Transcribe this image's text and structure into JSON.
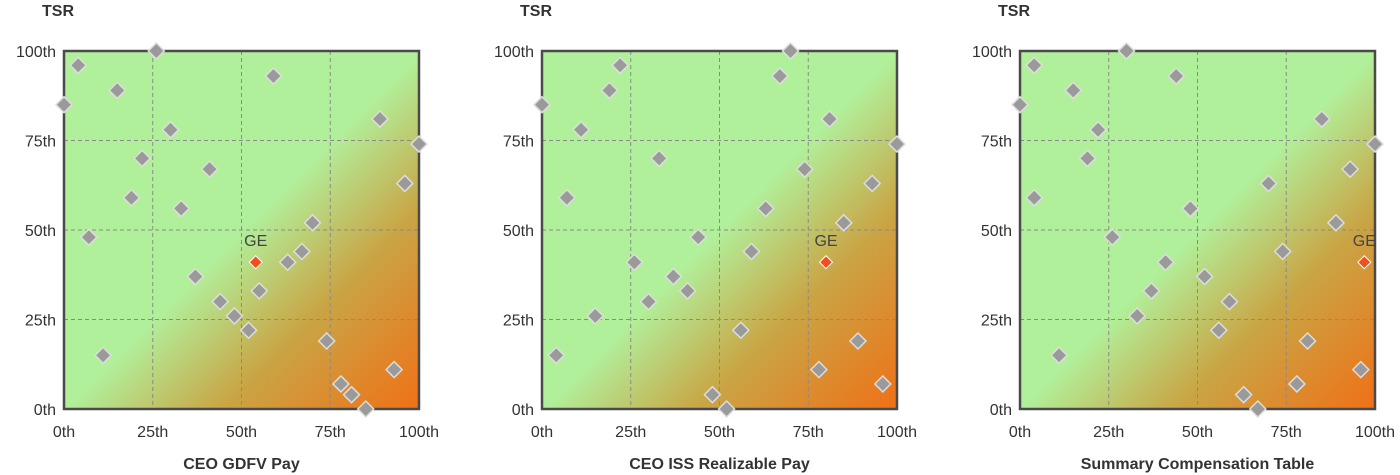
{
  "chart_data": [
    {
      "type": "scatter",
      "ylabel": "TSR",
      "xlabel": "CEO GDFV Pay",
      "x_ticks": [
        "0th",
        "25th",
        "50th",
        "75th",
        "100th"
      ],
      "y_ticks": [
        "0th",
        "25th",
        "50th",
        "75th",
        "100th"
      ],
      "xlim": [
        0,
        100
      ],
      "ylim": [
        0,
        100
      ],
      "grid": true,
      "points": [
        [
          0,
          85
        ],
        [
          4,
          96
        ],
        [
          7,
          48
        ],
        [
          11,
          15
        ],
        [
          15,
          89
        ],
        [
          19,
          59
        ],
        [
          22,
          70
        ],
        [
          26,
          100
        ],
        [
          30,
          78
        ],
        [
          33,
          56
        ],
        [
          37,
          37
        ],
        [
          41,
          67
        ],
        [
          44,
          30
        ],
        [
          48,
          26
        ],
        [
          52,
          22
        ],
        [
          55,
          33
        ],
        [
          59,
          93
        ],
        [
          63,
          41
        ],
        [
          67,
          44
        ],
        [
          70,
          52
        ],
        [
          74,
          19
        ],
        [
          78,
          7
        ],
        [
          81,
          4
        ],
        [
          85,
          0
        ],
        [
          89,
          81
        ],
        [
          93,
          11
        ],
        [
          96,
          63
        ],
        [
          100,
          74
        ]
      ],
      "highlight": {
        "label": "GE",
        "x": 54,
        "y": 41
      }
    },
    {
      "type": "scatter",
      "ylabel": "TSR",
      "xlabel": "CEO ISS Realizable Pay",
      "x_ticks": [
        "0th",
        "25th",
        "50th",
        "75th",
        "100th"
      ],
      "y_ticks": [
        "0th",
        "25th",
        "50th",
        "75th",
        "100th"
      ],
      "xlim": [
        0,
        100
      ],
      "ylim": [
        0,
        100
      ],
      "grid": true,
      "points": [
        [
          0,
          85
        ],
        [
          4,
          15
        ],
        [
          7,
          59
        ],
        [
          11,
          78
        ],
        [
          15,
          26
        ],
        [
          19,
          89
        ],
        [
          22,
          96
        ],
        [
          26,
          41
        ],
        [
          30,
          30
        ],
        [
          33,
          70
        ],
        [
          37,
          37
        ],
        [
          41,
          33
        ],
        [
          44,
          48
        ],
        [
          48,
          4
        ],
        [
          52,
          0
        ],
        [
          56,
          22
        ],
        [
          59,
          44
        ],
        [
          63,
          56
        ],
        [
          67,
          93
        ],
        [
          70,
          100
        ],
        [
          74,
          67
        ],
        [
          78,
          11
        ],
        [
          81,
          81
        ],
        [
          85,
          52
        ],
        [
          89,
          19
        ],
        [
          93,
          63
        ],
        [
          96,
          7
        ],
        [
          100,
          74
        ]
      ],
      "highlight": {
        "label": "GE",
        "x": 80,
        "y": 41
      }
    },
    {
      "type": "scatter",
      "ylabel": "TSR",
      "xlabel": "Summary Compensation Table",
      "x_ticks": [
        "0th",
        "25th",
        "50th",
        "75th",
        "100th"
      ],
      "y_ticks": [
        "0th",
        "25th",
        "50th",
        "75th",
        "100th"
      ],
      "xlim": [
        0,
        100
      ],
      "ylim": [
        0,
        100
      ],
      "grid": true,
      "points": [
        [
          0,
          85
        ],
        [
          4,
          59
        ],
        [
          4,
          96
        ],
        [
          11,
          15
        ],
        [
          15,
          89
        ],
        [
          19,
          70
        ],
        [
          22,
          78
        ],
        [
          26,
          48
        ],
        [
          30,
          100
        ],
        [
          33,
          26
        ],
        [
          37,
          33
        ],
        [
          41,
          41
        ],
        [
          44,
          93
        ],
        [
          48,
          56
        ],
        [
          52,
          37
        ],
        [
          56,
          22
        ],
        [
          59,
          30
        ],
        [
          63,
          4
        ],
        [
          67,
          0
        ],
        [
          70,
          63
        ],
        [
          74,
          44
        ],
        [
          78,
          7
        ],
        [
          81,
          19
        ],
        [
          85,
          81
        ],
        [
          89,
          52
        ],
        [
          93,
          67
        ],
        [
          96,
          11
        ],
        [
          100,
          74
        ]
      ],
      "highlight": {
        "label": "GE",
        "x": 97,
        "y": 41
      }
    }
  ],
  "colors": {
    "plot_low": "#b1f09b",
    "plot_high": "#f07016",
    "marker": "#9a9a9a",
    "marker_stroke": "#dddddd",
    "highlight": "#f0501e",
    "frame": "#4a4a4a",
    "grid": "#8a8a8a"
  }
}
